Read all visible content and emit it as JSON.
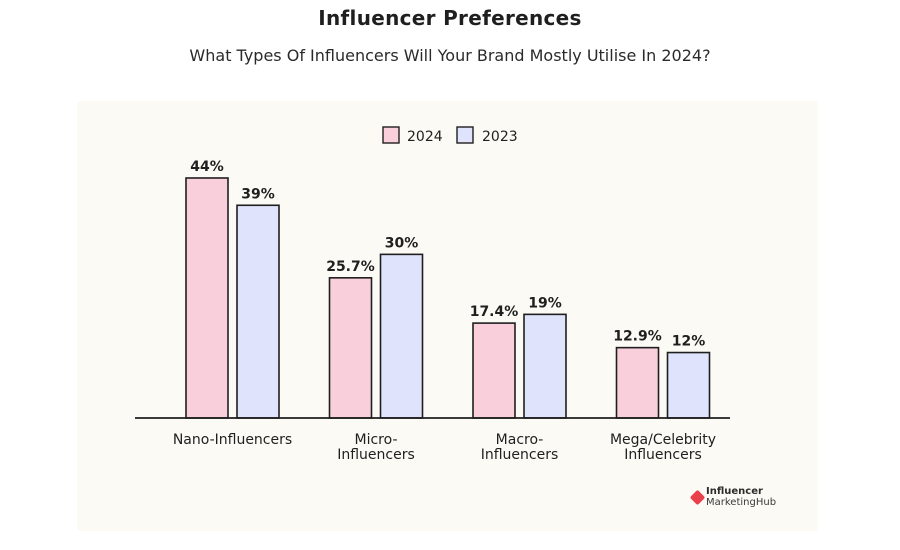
{
  "chart_data": {
    "type": "bar",
    "title": "Influencer Preferences",
    "subtitle": "What Types Of Influencers Will Your Brand Mostly Utilise In 2024?",
    "categories": [
      [
        "Nano-Influencers"
      ],
      [
        "Micro-",
        "Influencers"
      ],
      [
        "Macro-",
        "Influencers"
      ],
      [
        "Mega/Celebrity",
        "Influencers"
      ]
    ],
    "series": [
      {
        "name": "2024",
        "values": [
          44,
          25.7,
          17.4,
          12.9
        ],
        "labels": [
          "44%",
          "25.7%",
          "17.4%",
          "12.9%"
        ],
        "color": "#f9cfdc"
      },
      {
        "name": "2023",
        "values": [
          39,
          30,
          19,
          12
        ],
        "labels": [
          "39%",
          "30%",
          "19%",
          "12%"
        ],
        "color": "#dfe3fb"
      }
    ],
    "ylim": [
      0,
      44
    ],
    "grid": false,
    "legend_position": "top-center",
    "xlabel": "",
    "ylabel": ""
  },
  "brand": {
    "line1": "Influencer",
    "line2": "MarketingHub",
    "color": "#e9414b"
  }
}
